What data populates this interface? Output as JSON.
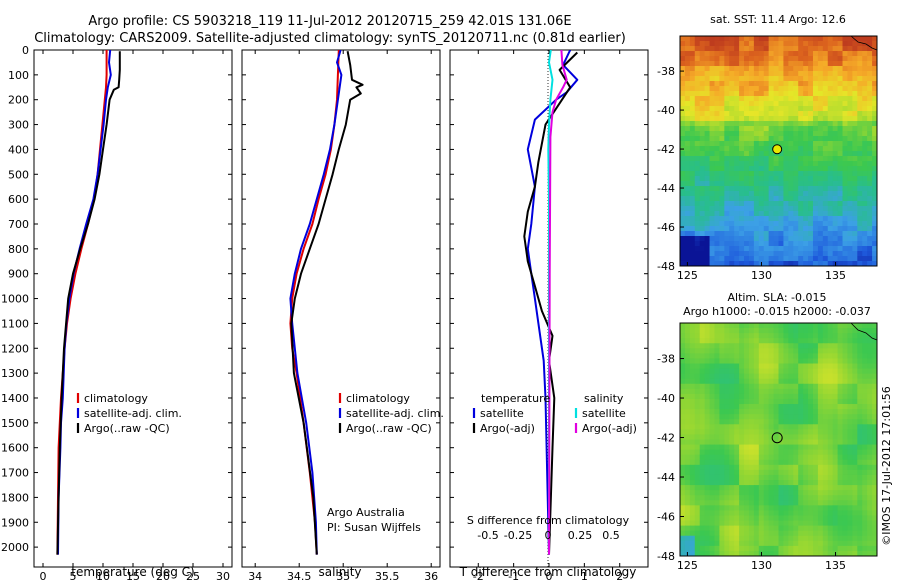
{
  "header": {
    "title_line1": "Argo profile: CS 5903218_119 11-Jul-2012 20120715_259 42.01S 131.06E",
    "title_line2": "Climatology: CARS2009. Satellite-adjusted climatology: synTS_20120711.nc (0.81d earlier)"
  },
  "colors": {
    "climatology": "#e00000",
    "satellite": "#0000dd",
    "argo": "#000000",
    "salinity_satellite": "#00e0e0",
    "salinity_argo": "#e000e0"
  },
  "chart_data": [
    {
      "type": "line",
      "panel": "temperature",
      "xlabel": "temperature (deg C)",
      "ylabel": "",
      "xlim": [
        -1.5,
        31.5
      ],
      "ylim": [
        2080,
        0
      ],
      "xticks": [
        0,
        5,
        10,
        15,
        20,
        25,
        30
      ],
      "yticks": [
        0,
        100,
        200,
        300,
        400,
        500,
        600,
        700,
        800,
        900,
        1000,
        1100,
        1200,
        1300,
        1400,
        1500,
        1600,
        1700,
        1800,
        1900,
        2000
      ],
      "legend": [
        "climatology",
        "satellite-adj. clim.",
        "Argo(..raw -QC)"
      ],
      "legend_position": "lower-right",
      "series": [
        {
          "name": "climatology",
          "x": [
            10.6,
            10.6,
            10.5,
            10.3,
            9.9,
            9.5,
            9.1,
            8.5,
            7.5,
            6.4,
            5.4,
            4.6,
            4.0,
            3.6,
            3.3,
            3.0,
            2.8,
            2.6,
            2.5,
            2.4
          ],
          "y": [
            0,
            100,
            150,
            200,
            300,
            400,
            500,
            600,
            700,
            800,
            900,
            1000,
            1100,
            1200,
            1300,
            1400,
            1500,
            1600,
            1800,
            2030
          ]
        },
        {
          "name": "satellite-adj. clim.",
          "x": [
            11.2,
            11.0,
            11.3,
            10.8,
            10.5,
            10.1,
            9.6,
            9.1,
            8.4,
            7.2,
            6.1,
            5.1,
            4.4,
            3.9,
            3.6,
            3.3,
            3.0,
            2.9,
            2.6,
            2.5
          ],
          "y": [
            0,
            50,
            100,
            150,
            200,
            300,
            400,
            500,
            600,
            700,
            800,
            900,
            1000,
            1100,
            1200,
            1400,
            1500,
            1600,
            1800,
            2030
          ]
        },
        {
          "name": "Argo(..raw -QC)",
          "x": [
            12.8,
            12.8,
            12.7,
            12.6,
            11.8,
            11.1,
            10.6,
            10.0,
            9.4,
            8.6,
            7.5,
            6.2,
            5.0,
            4.2,
            3.5,
            3.1,
            2.8,
            2.6,
            2.4
          ],
          "y": [
            5,
            80,
            120,
            150,
            160,
            200,
            300,
            400,
            500,
            600,
            700,
            800,
            900,
            1000,
            1200,
            1400,
            1600,
            1800,
            2030
          ]
        }
      ],
      "annotations": []
    },
    {
      "type": "line",
      "panel": "salinity",
      "xlabel": "salinity",
      "ylabel": "",
      "xlim": [
        33.85,
        36.1
      ],
      "ylim": [
        2080,
        0
      ],
      "xticks": [
        34,
        34.5,
        35,
        35.5,
        36
      ],
      "legend": [
        "climatology",
        "satellite-adj. clim.",
        "Argo(..raw -QC)"
      ],
      "legend_position": "lower-right",
      "series": [
        {
          "name": "climatology",
          "x": [
            34.95,
            34.93,
            34.9,
            34.86,
            34.8,
            34.72,
            34.65,
            34.55,
            34.47,
            34.42,
            34.4,
            34.42,
            34.47,
            34.55,
            34.62,
            34.68,
            34.7
          ],
          "y": [
            0,
            200,
            300,
            400,
            500,
            600,
            700,
            800,
            900,
            1000,
            1100,
            1200,
            1300,
            1500,
            1700,
            1900,
            2030
          ]
        },
        {
          "name": "satellite-adj. clim.",
          "x": [
            34.97,
            34.93,
            34.98,
            34.94,
            34.9,
            34.85,
            34.78,
            34.7,
            34.62,
            34.52,
            34.45,
            34.4,
            34.42,
            34.48,
            34.58,
            34.65,
            34.69,
            34.7
          ],
          "y": [
            0,
            50,
            100,
            200,
            300,
            400,
            500,
            600,
            700,
            800,
            900,
            1000,
            1100,
            1300,
            1500,
            1700,
            1900,
            2030
          ]
        },
        {
          "name": "Argo(..raw -QC)",
          "x": [
            35.05,
            35.08,
            35.1,
            35.22,
            35.15,
            35.2,
            35.08,
            35.03,
            34.95,
            34.88,
            34.8,
            34.72,
            34.62,
            34.52,
            34.45,
            34.41,
            34.44,
            34.55,
            34.66,
            34.7
          ],
          "y": [
            5,
            60,
            120,
            140,
            150,
            175,
            200,
            300,
            400,
            500,
            600,
            700,
            800,
            900,
            1000,
            1100,
            1300,
            1500,
            1800,
            2030
          ]
        }
      ],
      "annotations": [
        "Argo Australia",
        "PI: Susan Wijffels"
      ]
    },
    {
      "type": "line",
      "panel": "difference",
      "xlabel": "T difference from climatology",
      "top_label": "S difference from climatology",
      "xlim": [
        -2.8,
        2.8
      ],
      "ylim": [
        2080,
        0
      ],
      "xticks": [
        -2,
        -1,
        0,
        1,
        2
      ],
      "top_ticks": [
        "-0.5",
        "-0.25",
        "0",
        "0.25",
        "0.5"
      ],
      "legend_temperature_title": "temperature",
      "legend_salinity_title": "salinity",
      "legend": [
        "satellite",
        "Argo(-adj)",
        "satellite",
        "Argo(-adj)"
      ],
      "legend_position": "lower-center",
      "series": [
        {
          "name": "satellite",
          "x": [
            0.6,
            0.4,
            0.8,
            0.5,
            0.2,
            -0.4,
            -0.6,
            -0.4,
            -0.5,
            -0.6,
            -0.5,
            -0.4,
            -0.3,
            -0.15,
            -0.1,
            0
          ],
          "y": [
            0,
            60,
            120,
            170,
            200,
            280,
            400,
            550,
            700,
            800,
            900,
            1000,
            1100,
            1250,
            1400,
            2030
          ]
        },
        {
          "name": "Argo(-adj)",
          "x": [
            0.8,
            0.3,
            0.6,
            -0.1,
            -0.3,
            -0.4,
            -0.6,
            -0.7,
            -0.6,
            -0.4,
            -0.2,
            0.1,
            0.0,
            0.15,
            0.1,
            0
          ],
          "y": [
            10,
            80,
            150,
            300,
            450,
            550,
            650,
            750,
            850,
            950,
            1050,
            1150,
            1250,
            1400,
            1600,
            2030
          ]
        },
        {
          "name": "satellite",
          "x": [
            0.05,
            0.0,
            0.1,
            0.04,
            0.0,
            -0.02,
            0.0,
            0.0,
            0.0,
            0.0
          ],
          "y": [
            0,
            50,
            120,
            200,
            300,
            400,
            600,
            800,
            1200,
            2030
          ]
        },
        {
          "name": "Argo(-adj)",
          "x": [
            0.35,
            0.38,
            0.5,
            0.4,
            0.2,
            0.1,
            0.04,
            0.03,
            0.02,
            0.01,
            0.0
          ],
          "y": [
            0,
            60,
            120,
            150,
            200,
            250,
            350,
            600,
            900,
            1400,
            2030
          ]
        }
      ],
      "annotations": []
    },
    {
      "type": "heatmap",
      "panel": "sst-map",
      "title": "sat. SST: 11.4  Argo: 12.6",
      "xlim": [
        124.5,
        137.8
      ],
      "ylim": [
        -48,
        -36.2
      ],
      "xticks": [
        125,
        130,
        135
      ],
      "yticks": [
        -38,
        -40,
        -42,
        -44,
        -46,
        -48
      ],
      "marker": {
        "lon": 131.06,
        "lat": -42.01
      },
      "description_of_colors": "orange/red in north grading to green and blue in south"
    },
    {
      "type": "heatmap",
      "panel": "sla-map",
      "title_line1": "Altim. SLA: -0.015",
      "title_line2": "Argo h1000: -0.015 h2000: -0.037",
      "xlim": [
        124.5,
        137.8
      ],
      "ylim": [
        -48,
        -36.2
      ],
      "xticks": [
        125,
        130,
        135
      ],
      "yticks": [
        -38,
        -40,
        -42,
        -44,
        -46,
        -48
      ],
      "marker": {
        "lon": 131.06,
        "lat": -42.01
      }
    }
  ],
  "watermark": "©IMOS 17-Jul-2012 17:01:56"
}
